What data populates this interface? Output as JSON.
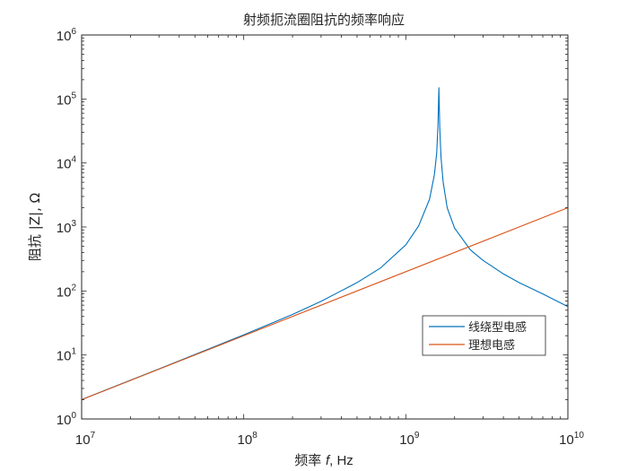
{
  "chart_data": {
    "type": "line",
    "title": "射频扼流圈阻抗的频率响应",
    "xlabel_prefix": "频率 ",
    "xlabel_var": "f",
    "xlabel_suffix": ", Hz",
    "ylabel": "阻抗 |Z|, Ω",
    "xscale": "log",
    "yscale": "log",
    "xlim": [
      10000000,
      10000000000
    ],
    "ylim": [
      1,
      1000000
    ],
    "x_ticks": [
      {
        "value": 10000000,
        "base": "10",
        "exp": "7"
      },
      {
        "value": 100000000,
        "base": "10",
        "exp": "8"
      },
      {
        "value": 1000000000,
        "base": "10",
        "exp": "9"
      },
      {
        "value": 10000000000,
        "base": "10",
        "exp": "10"
      }
    ],
    "y_ticks": [
      {
        "value": 1,
        "base": "10",
        "exp": "0"
      },
      {
        "value": 10,
        "base": "10",
        "exp": "1"
      },
      {
        "value": 100,
        "base": "10",
        "exp": "2"
      },
      {
        "value": 1000,
        "base": "10",
        "exp": "3"
      },
      {
        "value": 10000,
        "base": "10",
        "exp": "4"
      },
      {
        "value": 100000,
        "base": "10",
        "exp": "5"
      },
      {
        "value": 1000000,
        "base": "10",
        "exp": "6"
      }
    ],
    "grid": false,
    "legend_position": "lower-right",
    "series": [
      {
        "name": "线绕型电感",
        "color": "#0072bd",
        "x": [
          10000000,
          30000000,
          100000000,
          200000000,
          300000000,
          500000000,
          700000000,
          1000000000,
          1200000000,
          1400000000,
          1500000000,
          1550000000,
          1580000000,
          1600000000,
          1620000000,
          1650000000,
          1700000000,
          1800000000,
          2000000000,
          2500000000,
          3000000000,
          4000000000,
          5000000000,
          7000000000,
          10000000000
        ],
        "y": [
          2.01,
          6.05,
          20.6,
          43,
          69,
          135,
          230,
          525,
          1040,
          2700,
          6500,
          14000,
          40000,
          150000,
          35000,
          12000,
          5000,
          2000,
          960,
          440,
          300,
          185,
          135,
          90,
          57
        ]
      },
      {
        "name": "理想电感",
        "color": "#d95319",
        "x": [
          10000000,
          10000000000
        ],
        "y": [
          2,
          2000
        ]
      }
    ]
  }
}
